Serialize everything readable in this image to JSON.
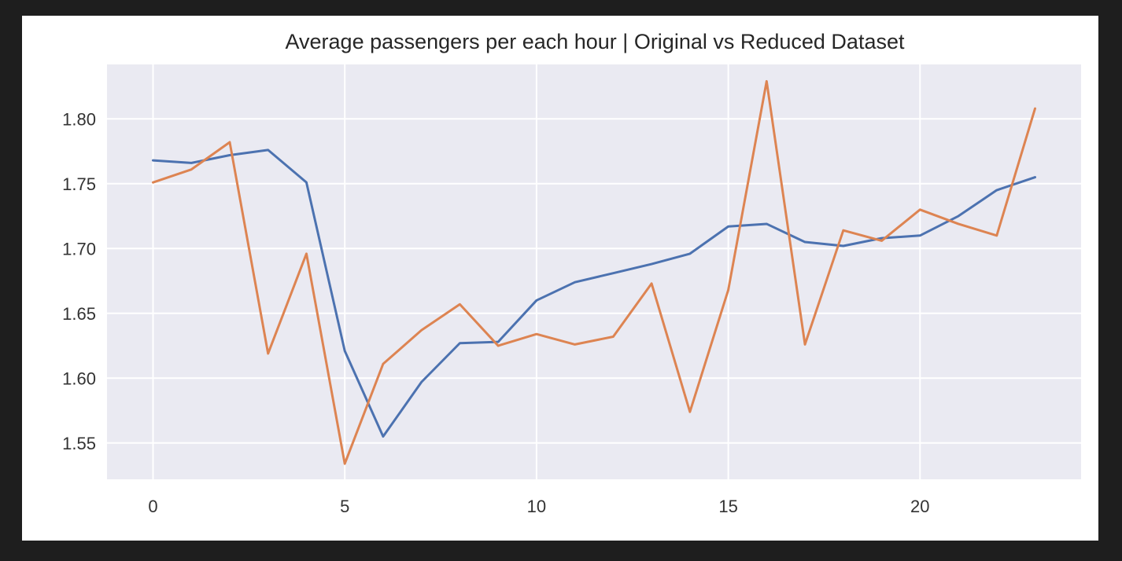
{
  "chart_data": {
    "type": "line",
    "title": "Average passengers per each hour | Original vs Reduced Dataset",
    "xlabel": "",
    "ylabel": "",
    "x": [
      0,
      1,
      2,
      3,
      4,
      5,
      6,
      7,
      8,
      9,
      10,
      11,
      12,
      13,
      14,
      15,
      16,
      17,
      18,
      19,
      20,
      21,
      22,
      23
    ],
    "xlim": [
      -1.2,
      24.2
    ],
    "ylim": [
      1.522,
      1.842
    ],
    "xticks": [
      0,
      5,
      10,
      15,
      20
    ],
    "yticks": [
      1.55,
      1.6,
      1.65,
      1.7,
      1.75,
      1.8
    ],
    "xtick_labels": [
      "0",
      "5",
      "10",
      "15",
      "20"
    ],
    "ytick_labels": [
      "1.55",
      "1.60",
      "1.65",
      "1.70",
      "1.75",
      "1.80"
    ],
    "grid": true,
    "background": "#eaeaf2",
    "series": [
      {
        "color": "#4c72b0",
        "values": [
          1.768,
          1.766,
          1.772,
          1.776,
          1.751,
          1.621,
          1.555,
          1.597,
          1.627,
          1.628,
          1.66,
          1.674,
          1.681,
          1.688,
          1.696,
          1.717,
          1.719,
          1.705,
          1.702,
          1.708,
          1.71,
          1.725,
          1.745,
          1.755
        ]
      },
      {
        "color": "#dd8452",
        "values": [
          1.751,
          1.761,
          1.782,
          1.619,
          1.696,
          1.534,
          1.611,
          1.637,
          1.657,
          1.625,
          1.634,
          1.626,
          1.632,
          1.673,
          1.574,
          1.668,
          1.829,
          1.626,
          1.714,
          1.706,
          1.73,
          1.719,
          1.71,
          1.808
        ]
      }
    ]
  }
}
